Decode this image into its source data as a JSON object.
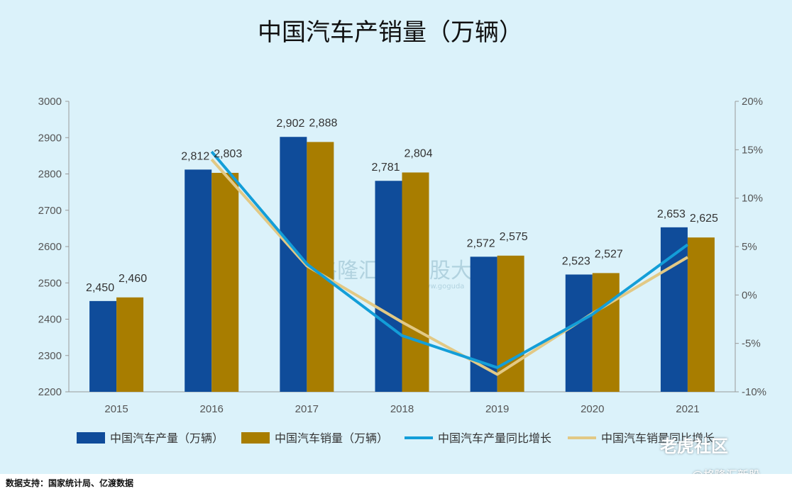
{
  "chart_data": {
    "type": "bar",
    "title": "中国汽车产销量（万辆）",
    "categories": [
      "2015",
      "2016",
      "2017",
      "2018",
      "2019",
      "2020",
      "2021"
    ],
    "series": [
      {
        "name": "中国汽车产量（万辆）",
        "kind": "bar",
        "axis": "left",
        "color": "#0f4c9a",
        "values": [
          2450,
          2812,
          2902,
          2781,
          2572,
          2523,
          2653
        ],
        "labels": [
          "2,450",
          "2,812",
          "2,902",
          "2,781",
          "2,572",
          "2,523",
          "2,653"
        ]
      },
      {
        "name": "中国汽车销量（万辆）",
        "kind": "bar",
        "axis": "left",
        "color": "#a87d00",
        "values": [
          2460,
          2803,
          2888,
          2804,
          2575,
          2527,
          2625
        ],
        "labels": [
          "2,460",
          "2,803",
          "2,888",
          "2,804",
          "2,575",
          "2,527",
          "2,625"
        ]
      },
      {
        "name": "中国汽车产量同比增长",
        "kind": "line",
        "axis": "right",
        "color": "#139ed8",
        "values": [
          null,
          14.8,
          3.2,
          -4.2,
          -7.5,
          -2.0,
          5.2
        ]
      },
      {
        "name": "中国汽车销量同比增长",
        "kind": "line",
        "axis": "right",
        "color": "#e2c985",
        "values": [
          null,
          14.0,
          3.0,
          -2.8,
          -8.2,
          -1.9,
          3.9
        ]
      }
    ],
    "y_left": {
      "min": 2200,
      "max": 3000,
      "ticks": [
        "2200",
        "2300",
        "2400",
        "2500",
        "2600",
        "2700",
        "2800",
        "2900",
        "3000"
      ]
    },
    "y_right": {
      "min": -10,
      "max": 20,
      "ticks": [
        "-10%",
        "-5%",
        "0%",
        "5%",
        "10%",
        "15%",
        "20%"
      ]
    },
    "legend_position": "bottom",
    "grid": false
  },
  "watermark": {
    "text_1": "格隆汇",
    "text_2": "勾股大数据",
    "url": "www.goguda"
  },
  "footer": {
    "source": "数据支持：国家统计局、亿渡数据"
  },
  "brand": {
    "name_1": "老虎社区",
    "name_2": "@格隆汇新股"
  }
}
